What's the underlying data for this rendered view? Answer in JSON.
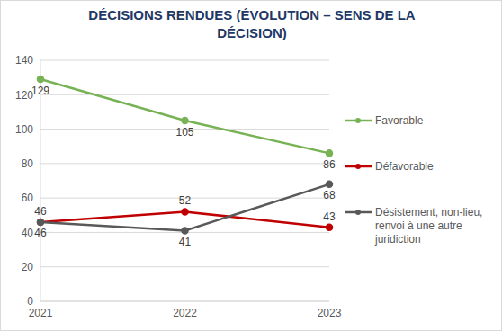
{
  "chart_data": {
    "type": "line",
    "title": "DÉCISIONS RENDUES (ÉVOLUTION – SENS DE LA DÉCISION)",
    "categories": [
      "2021",
      "2022",
      "2023"
    ],
    "series": [
      {
        "name": "Favorable",
        "color": "#77b255",
        "values": [
          129,
          105,
          86
        ]
      },
      {
        "name": "Défavorable",
        "color": "#c00000",
        "values": [
          46,
          52,
          43
        ]
      },
      {
        "name": "Désistement, non-lieu, renvoi à une autre juridiction",
        "color": "#595959",
        "values": [
          46,
          41,
          68
        ]
      }
    ],
    "ylim": [
      0,
      140
    ],
    "yticks": [
      0,
      20,
      40,
      60,
      80,
      100,
      120,
      140
    ],
    "grid": true,
    "data_labels": true,
    "marker": "circle",
    "line_style": "solid"
  }
}
